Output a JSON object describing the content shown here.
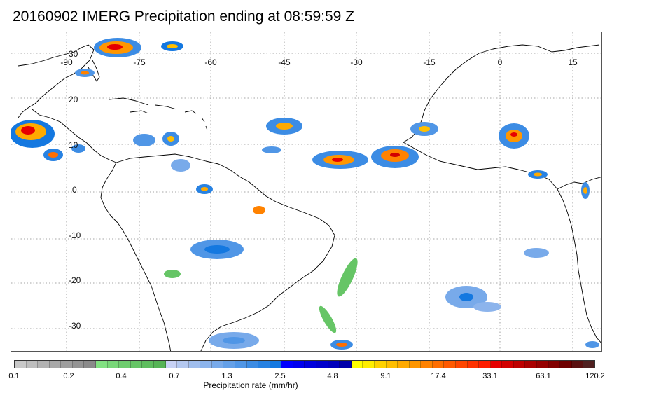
{
  "title": "20160902 IMERG Precipitation ending at 08:59:59 Z",
  "map": {
    "lon_labels": [
      "-90",
      "-75",
      "-60",
      "-45",
      "-30",
      "-15",
      "0",
      "15"
    ],
    "lat_labels": [
      "30",
      "20",
      "10",
      "0",
      "-10",
      "-20",
      "-30"
    ]
  },
  "colorbar": {
    "label": "Precipitation rate (mm/hr)",
    "tick_labels": [
      "0.1",
      "0.2",
      "0.4",
      "0.7",
      "1.3",
      "2.5",
      "4.8",
      "9.1",
      "17.4",
      "33.1",
      "63.1",
      "120.2"
    ],
    "colors": [
      "#c8c8c8",
      "#bdbdbd",
      "#b2b2b2",
      "#a8a8a8",
      "#9e9e9e",
      "#949494",
      "#8a8a8a",
      "#82e182",
      "#78d778",
      "#6ecd6e",
      "#66c566",
      "#5ebd5e",
      "#56b456",
      "#c8d2f5",
      "#b4c8f0",
      "#a0beee",
      "#8cb4ec",
      "#78aaea",
      "#64a0e8",
      "#5096e6",
      "#3c8ce4",
      "#2882e2",
      "#1478e0",
      "#0000ff",
      "#0000ee",
      "#0000dd",
      "#0000cc",
      "#0000bb",
      "#0000aa",
      "#ffff00",
      "#ffee00",
      "#ffd200",
      "#ffbe00",
      "#ffaa00",
      "#ff9600",
      "#ff8200",
      "#ff6e00",
      "#ff5a00",
      "#ff4600",
      "#ff3200",
      "#ff1e00",
      "#e60000",
      "#d20000",
      "#be0000",
      "#aa0000",
      "#960000",
      "#820000",
      "#6e0000",
      "#5a1010",
      "#502020"
    ]
  }
}
